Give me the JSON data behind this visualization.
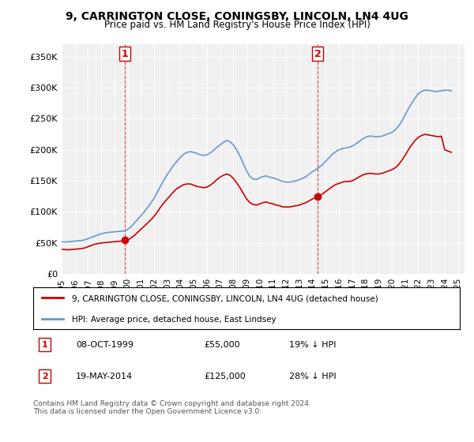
{
  "title": "9, CARRINGTON CLOSE, CONINGSBY, LINCOLN, LN4 4UG",
  "subtitle": "Price paid vs. HM Land Registry's House Price Index (HPI)",
  "ylabel_ticks": [
    "£0",
    "£50K",
    "£100K",
    "£150K",
    "£200K",
    "£250K",
    "£300K",
    "£350K"
  ],
  "ytick_values": [
    0,
    50000,
    100000,
    150000,
    200000,
    250000,
    300000,
    350000
  ],
  "ylim": [
    0,
    370000
  ],
  "xlim_start": 1995.0,
  "xlim_end": 2025.5,
  "sale1_x": 1999.77,
  "sale1_y": 55000,
  "sale1_label": "1",
  "sale2_x": 2014.38,
  "sale2_y": 125000,
  "sale2_label": "2",
  "red_color": "#cc0000",
  "blue_color": "#6699cc",
  "background_color": "#f0f0f0",
  "legend_entry1": "9, CARRINGTON CLOSE, CONINGSBY, LINCOLN, LN4 4UG (detached house)",
  "legend_entry2": "HPI: Average price, detached house, East Lindsey",
  "annotation1": "08-OCT-1999    £55,000    19% ↓ HPI",
  "annotation2": "19-MAY-2014    £125,000    28% ↓ HPI",
  "footer": "Contains HM Land Registry data © Crown copyright and database right 2024.\nThis data is licensed under the Open Government Licence v3.0.",
  "hpi_years": [
    1995,
    1995.25,
    1995.5,
    1995.75,
    1996,
    1996.25,
    1996.5,
    1996.75,
    1997,
    1997.25,
    1997.5,
    1997.75,
    1998,
    1998.25,
    1998.5,
    1998.75,
    1999,
    1999.25,
    1999.5,
    1999.75,
    2000,
    2000.25,
    2000.5,
    2000.75,
    2001,
    2001.25,
    2001.5,
    2001.75,
    2002,
    2002.25,
    2002.5,
    2002.75,
    2003,
    2003.25,
    2003.5,
    2003.75,
    2004,
    2004.25,
    2004.5,
    2004.75,
    2005,
    2005.25,
    2005.5,
    2005.75,
    2006,
    2006.25,
    2006.5,
    2006.75,
    2007,
    2007.25,
    2007.5,
    2007.75,
    2008,
    2008.25,
    2008.5,
    2008.75,
    2009,
    2009.25,
    2009.5,
    2009.75,
    2010,
    2010.25,
    2010.5,
    2010.75,
    2011,
    2011.25,
    2011.5,
    2011.75,
    2012,
    2012.25,
    2012.5,
    2012.75,
    2013,
    2013.25,
    2013.5,
    2013.75,
    2014,
    2014.25,
    2014.5,
    2014.75,
    2015,
    2015.25,
    2015.5,
    2015.75,
    2016,
    2016.25,
    2016.5,
    2016.75,
    2017,
    2017.25,
    2017.5,
    2017.75,
    2018,
    2018.25,
    2018.5,
    2018.75,
    2019,
    2019.25,
    2019.5,
    2019.75,
    2020,
    2020.25,
    2020.5,
    2020.75,
    2021,
    2021.25,
    2021.5,
    2021.75,
    2022,
    2022.25,
    2022.5,
    2022.75,
    2023,
    2023.25,
    2023.5,
    2023.75,
    2024,
    2024.25,
    2024.5
  ],
  "hpi_values": [
    52000,
    51500,
    52000,
    52500,
    53000,
    53500,
    54000,
    55000,
    57000,
    59000,
    61000,
    63000,
    65000,
    66000,
    67000,
    67500,
    68000,
    68500,
    69000,
    69500,
    72000,
    76000,
    82000,
    88000,
    94000,
    100000,
    107000,
    114000,
    122000,
    132000,
    142000,
    152000,
    160000,
    168000,
    176000,
    182000,
    188000,
    193000,
    196000,
    197000,
    196000,
    194000,
    192000,
    191000,
    192000,
    195000,
    199000,
    204000,
    208000,
    212000,
    215000,
    213000,
    208000,
    200000,
    190000,
    178000,
    166000,
    157000,
    153000,
    152000,
    155000,
    157000,
    158000,
    156000,
    155000,
    153000,
    151000,
    149000,
    148000,
    148000,
    149000,
    150000,
    152000,
    154000,
    157000,
    161000,
    165000,
    168000,
    172000,
    176000,
    182000,
    187000,
    193000,
    197000,
    200000,
    202000,
    203000,
    204000,
    206000,
    209000,
    213000,
    217000,
    220000,
    222000,
    222000,
    221000,
    221000,
    222000,
    224000,
    226000,
    228000,
    232000,
    238000,
    246000,
    256000,
    266000,
    275000,
    283000,
    290000,
    294000,
    296000,
    296000,
    295000,
    294000,
    294000,
    295000,
    296000,
    296000,
    295000
  ],
  "red_years": [
    1995,
    1995.25,
    1995.5,
    1995.75,
    1996,
    1996.25,
    1996.5,
    1996.75,
    1997,
    1997.25,
    1997.5,
    1997.75,
    1998,
    1998.25,
    1998.5,
    1998.75,
    1999,
    1999.25,
    1999.5,
    1999.75,
    2000,
    2000.25,
    2000.5,
    2000.75,
    2001,
    2001.25,
    2001.5,
    2001.75,
    2002,
    2002.25,
    2002.5,
    2002.75,
    2003,
    2003.25,
    2003.5,
    2003.75,
    2004,
    2004.25,
    2004.5,
    2004.75,
    2005,
    2005.25,
    2005.5,
    2005.75,
    2006,
    2006.25,
    2006.5,
    2006.75,
    2007,
    2007.25,
    2007.5,
    2007.75,
    2008,
    2008.25,
    2008.5,
    2008.75,
    2009,
    2009.25,
    2009.5,
    2009.75,
    2010,
    2010.25,
    2010.5,
    2010.75,
    2011,
    2011.25,
    2011.5,
    2011.75,
    2012,
    2012.25,
    2012.5,
    2012.75,
    2013,
    2013.25,
    2013.5,
    2013.75,
    2014,
    2014.25,
    2014.5,
    2014.75,
    2015,
    2015.25,
    2015.5,
    2015.75,
    2016,
    2016.25,
    2016.5,
    2016.75,
    2017,
    2017.25,
    2017.5,
    2017.75,
    2018,
    2018.25,
    2018.5,
    2018.75,
    2019,
    2019.25,
    2019.5,
    2019.75,
    2020,
    2020.25,
    2020.5,
    2020.75,
    2021,
    2021.25,
    2021.5,
    2021.75,
    2022,
    2022.25,
    2022.5,
    2022.75,
    2023,
    2023.25,
    2023.5,
    2023.75,
    2024,
    2024.25,
    2024.5
  ],
  "red_values": [
    40000,
    39500,
    39000,
    39500,
    40000,
    40500,
    41000,
    42000,
    44000,
    46000,
    48000,
    49000,
    50000,
    50500,
    51000,
    51500,
    52000,
    52500,
    53000,
    53500,
    55000,
    58000,
    62000,
    67000,
    72000,
    77000,
    82000,
    87000,
    93000,
    100000,
    108000,
    115000,
    121000,
    127000,
    133000,
    138000,
    141000,
    144000,
    145000,
    145000,
    143000,
    141000,
    140000,
    139000,
    140000,
    143000,
    147000,
    152000,
    156000,
    159000,
    161000,
    159000,
    154000,
    147000,
    139000,
    130000,
    121000,
    115000,
    112000,
    111000,
    113000,
    115000,
    116000,
    114000,
    113000,
    111000,
    110000,
    108000,
    108000,
    108000,
    109000,
    110000,
    111000,
    113000,
    115000,
    118000,
    121000,
    123000,
    126000,
    129000,
    133000,
    137000,
    141000,
    144000,
    146000,
    148000,
    149000,
    149000,
    150000,
    153000,
    156000,
    159000,
    161000,
    162000,
    162000,
    161000,
    161000,
    162000,
    164000,
    166000,
    168000,
    171000,
    176000,
    183000,
    191000,
    200000,
    208000,
    215000,
    220000,
    223000,
    225000,
    224000,
    223000,
    222000,
    221000,
    222000,
    200000,
    198000,
    196000
  ]
}
